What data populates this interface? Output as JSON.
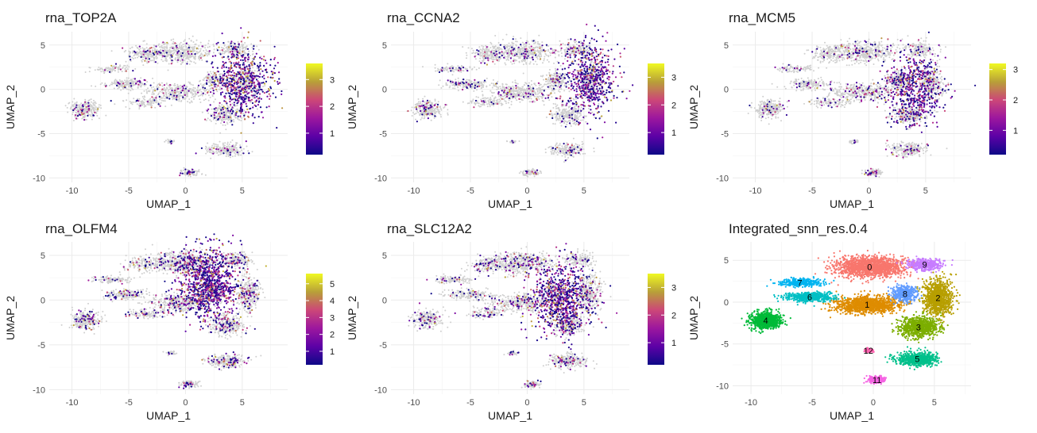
{
  "chart_data": [
    {
      "type": "scatter",
      "title": "rna_TOP2A",
      "xlabel": "UMAP_1",
      "ylabel": "UMAP_2",
      "xlim": [
        -12,
        9
      ],
      "ylim": [
        -10.5,
        6.5
      ],
      "xticks": [
        -10,
        -5,
        0,
        5
      ],
      "yticks": [
        -10,
        -5,
        0,
        5
      ],
      "color_scale": {
        "type": "continuous",
        "low": "#0d0887",
        "high": "#f0f921",
        "ticks": [
          1,
          2,
          3
        ],
        "max": 3.6
      },
      "expression_hotspot": [
        5,
        1
      ]
    },
    {
      "type": "scatter",
      "title": "rna_CCNA2",
      "xlabel": "UMAP_1",
      "ylabel": "UMAP_2",
      "xlim": [
        -12,
        9
      ],
      "ylim": [
        -10.5,
        6.5
      ],
      "xticks": [
        -10,
        -5,
        0,
        5
      ],
      "yticks": [
        -10,
        -5,
        0,
        5
      ],
      "color_scale": {
        "type": "continuous",
        "low": "#0d0887",
        "high": "#f0f921",
        "ticks": [
          1,
          2,
          3
        ],
        "max": 3.5
      },
      "expression_hotspot": [
        5.5,
        1
      ]
    },
    {
      "type": "scatter",
      "title": "rna_MCM5",
      "xlabel": "UMAP_1",
      "ylabel": "UMAP_2",
      "xlim": [
        -12,
        9
      ],
      "ylim": [
        -10.5,
        6.5
      ],
      "xticks": [
        -10,
        -5,
        0,
        5
      ],
      "yticks": [
        -10,
        -5,
        0,
        5
      ],
      "color_scale": {
        "type": "continuous",
        "low": "#0d0887",
        "high": "#f0f921",
        "ticks": [
          1,
          2,
          3
        ],
        "max": 3.2
      },
      "expression_hotspot": [
        4,
        0
      ]
    },
    {
      "type": "scatter",
      "title": "rna_OLFM4",
      "xlabel": "UMAP_1",
      "ylabel": "UMAP_2",
      "xlim": [
        -12,
        9
      ],
      "ylim": [
        -10.5,
        6.5
      ],
      "xticks": [
        -10,
        -5,
        0,
        5
      ],
      "yticks": [
        -10,
        -5,
        0,
        5
      ],
      "color_scale": {
        "type": "continuous",
        "low": "#0d0887",
        "high": "#f0f921",
        "ticks": [
          1,
          2,
          3,
          4,
          5
        ],
        "max": 5.6
      },
      "expression_hotspot": [
        2,
        2
      ]
    },
    {
      "type": "scatter",
      "title": "rna_SLC12A2",
      "xlabel": "UMAP_1",
      "ylabel": "UMAP_2",
      "xlim": [
        -12,
        9
      ],
      "ylim": [
        -10.5,
        6.5
      ],
      "xticks": [
        -10,
        -5,
        0,
        5
      ],
      "yticks": [
        -10,
        -5,
        0,
        5
      ],
      "color_scale": {
        "type": "continuous",
        "low": "#0d0887",
        "high": "#f0f921",
        "ticks": [
          1,
          2,
          3
        ],
        "max": 3.5
      },
      "expression_hotspot": [
        3,
        0
      ]
    },
    {
      "type": "scatter",
      "title": "Integrated_snn_res.0.4",
      "xlabel": "UMAP_1",
      "ylabel": "UMAP_2",
      "xlim": [
        -11.5,
        8
      ],
      "ylim": [
        -11,
        7.2
      ],
      "xticks": [
        -10,
        -5,
        0,
        5
      ],
      "yticks": [
        -10,
        -5,
        0,
        5
      ],
      "clusters": [
        {
          "label": "0",
          "x": -0.3,
          "y": 4.2,
          "color": "#F8766D"
        },
        {
          "label": "1",
          "x": -0.5,
          "y": -0.3,
          "color": "#DE8C00"
        },
        {
          "label": "2",
          "x": 5.3,
          "y": 0.5,
          "color": "#B79F00"
        },
        {
          "label": "3",
          "x": 3.7,
          "y": -3.0,
          "color": "#7CAE00"
        },
        {
          "label": "4",
          "x": -8.8,
          "y": -2.2,
          "color": "#00BA38"
        },
        {
          "label": "5",
          "x": 3.6,
          "y": -6.8,
          "color": "#00C08B"
        },
        {
          "label": "6",
          "x": -5.2,
          "y": 0.6,
          "color": "#00BFC4"
        },
        {
          "label": "7",
          "x": -6.0,
          "y": 2.3,
          "color": "#00B4F0"
        },
        {
          "label": "8",
          "x": 2.6,
          "y": 1.0,
          "color": "#619CFF"
        },
        {
          "label": "9",
          "x": 4.2,
          "y": 4.5,
          "color": "#C77CFF"
        },
        {
          "label": "11",
          "x": 0.3,
          "y": -9.3,
          "color": "#F564E3"
        },
        {
          "label": "12",
          "x": -0.4,
          "y": -5.8,
          "color": "#FF64B0"
        }
      ]
    }
  ]
}
